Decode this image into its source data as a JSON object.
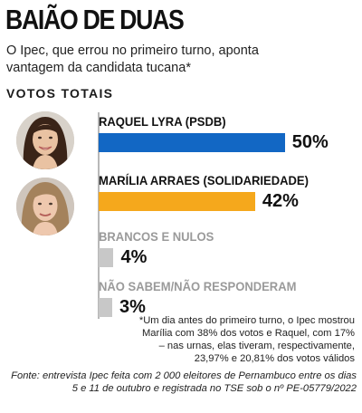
{
  "title": "BAIÃO DE DUAS",
  "subtitle": "O Ipec, que errou no primeiro turno, aponta vantagem da candidata tucana*",
  "section_label": "VOTOS TOTAIS",
  "colors": {
    "raquel": "#1267c4",
    "marilia": "#f5a81c",
    "other": "#c8c8c8"
  },
  "chart_data": {
    "type": "bar",
    "orientation": "horizontal",
    "categories": [
      "RAQUEL LYRA (PSDB)",
      "MARÍLIA ARRAES (SOLIDARIEDADE)",
      "BRANCOS E NULOS",
      "NÃO SABEM/NÃO RESPONDERAM"
    ],
    "values": [
      50,
      42,
      4,
      3
    ],
    "value_labels": [
      "50%",
      "42%",
      "4%",
      "3%"
    ],
    "unit": "%",
    "xlim": [
      0,
      52
    ]
  },
  "note": "*Um dia antes do primeiro turno, o Ipec mostrou Marília com 38% dos votos e Raquel, com 17% – nas urnas, elas tiveram, respectivamente, 23,97% e 20,81% dos votos válidos",
  "source": "Fonte: entrevista Ipec feita com 2 000 eleitores de Pernambuco entre os dias 5 e 11 de outubro e registrada no TSE sob o nº PE-05779/2022"
}
